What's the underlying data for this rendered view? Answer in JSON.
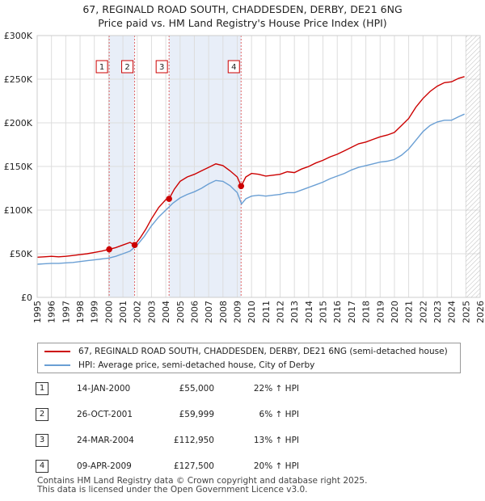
{
  "title": {
    "line1": "67, REGINALD ROAD SOUTH, CHADDESDEN, DERBY, DE21 6NG",
    "line2": "Price paid vs. HM Land Registry's House Price Index (HPI)"
  },
  "chart_data": {
    "type": "line",
    "xlim": [
      1995,
      2026
    ],
    "ylim": [
      0,
      300000
    ],
    "y_ticks": [
      0,
      50000,
      100000,
      150000,
      200000,
      250000,
      300000
    ],
    "y_tick_labels": [
      "£0",
      "£50K",
      "£100K",
      "£150K",
      "£200K",
      "£250K",
      "£300K"
    ],
    "x_ticks": [
      1995,
      1996,
      1997,
      1998,
      1999,
      2000,
      2001,
      2002,
      2003,
      2004,
      2005,
      2006,
      2007,
      2008,
      2009,
      2010,
      2011,
      2012,
      2013,
      2014,
      2015,
      2016,
      2017,
      2018,
      2019,
      2020,
      2021,
      2022,
      2023,
      2024,
      2025,
      2026
    ],
    "grid": true,
    "shaded_periods": [
      [
        2000.04,
        2001.82
      ],
      [
        2004.23,
        2009.27
      ]
    ],
    "future_hatch_from": 2025.0,
    "series": [
      {
        "name": "67, REGINALD ROAD SOUTH, CHADDESDEN, DERBY, DE21 6NG (semi-detached house)",
        "color": "#cc0000",
        "x": [
          1995.0,
          1995.5,
          1996.0,
          1996.5,
          1997.0,
          1997.5,
          1998.0,
          1998.5,
          1999.0,
          1999.5,
          2000.04,
          2000.5,
          2001.0,
          2001.5,
          2001.82,
          2002.2,
          2002.6,
          2003.0,
          2003.5,
          2004.0,
          2004.23,
          2004.6,
          2005.0,
          2005.5,
          2006.0,
          2006.5,
          2007.0,
          2007.5,
          2008.0,
          2008.5,
          2009.0,
          2009.27,
          2009.6,
          2010.0,
          2010.5,
          2011.0,
          2011.5,
          2012.0,
          2012.5,
          2013.0,
          2013.5,
          2014.0,
          2014.5,
          2015.0,
          2015.5,
          2016.0,
          2016.5,
          2017.0,
          2017.5,
          2018.0,
          2018.5,
          2019.0,
          2019.5,
          2020.0,
          2020.5,
          2021.0,
          2021.5,
          2022.0,
          2022.5,
          2023.0,
          2023.5,
          2024.0,
          2024.5,
          2024.9
        ],
        "values": [
          46000,
          46500,
          47000,
          46500,
          47000,
          48000,
          49000,
          50000,
          51500,
          53000,
          55000,
          57000,
          60000,
          63000,
          59999,
          68000,
          78000,
          90000,
          103000,
          112000,
          112950,
          124000,
          133000,
          138000,
          141000,
          145000,
          149000,
          153000,
          151000,
          145000,
          138000,
          127500,
          138000,
          142000,
          141000,
          139000,
          140000,
          141000,
          144000,
          143000,
          147000,
          150000,
          154000,
          157000,
          161000,
          164000,
          168000,
          172000,
          176000,
          178000,
          181000,
          184000,
          186000,
          189000,
          197000,
          205000,
          218000,
          228000,
          236000,
          242000,
          246000,
          247000,
          251000,
          253000
        ]
      },
      {
        "name": "HPI: Average price, semi-detached house, City of Derby",
        "color": "#6a9fd4",
        "x": [
          1995.0,
          1995.5,
          1996.0,
          1996.5,
          1997.0,
          1997.5,
          1998.0,
          1998.5,
          1999.0,
          1999.5,
          2000.0,
          2000.5,
          2001.0,
          2001.5,
          2002.0,
          2002.5,
          2003.0,
          2003.5,
          2004.0,
          2004.5,
          2005.0,
          2005.5,
          2006.0,
          2006.5,
          2007.0,
          2007.5,
          2008.0,
          2008.5,
          2009.0,
          2009.3,
          2009.6,
          2010.0,
          2010.5,
          2011.0,
          2011.5,
          2012.0,
          2012.5,
          2013.0,
          2013.5,
          2014.0,
          2014.5,
          2015.0,
          2015.5,
          2016.0,
          2016.5,
          2017.0,
          2017.5,
          2018.0,
          2018.5,
          2019.0,
          2019.5,
          2020.0,
          2020.5,
          2021.0,
          2021.5,
          2022.0,
          2022.5,
          2023.0,
          2023.5,
          2024.0,
          2024.5,
          2024.9
        ],
        "values": [
          38000,
          38500,
          39000,
          39000,
          39500,
          40000,
          41000,
          42000,
          43000,
          44000,
          45000,
          47000,
          50000,
          53000,
          60000,
          70000,
          82000,
          92000,
          100000,
          108000,
          114000,
          118000,
          121000,
          125000,
          130000,
          134000,
          133000,
          128000,
          120000,
          107000,
          113000,
          116000,
          117000,
          116000,
          117000,
          118000,
          120000,
          120000,
          123000,
          126000,
          129000,
          132000,
          136000,
          139000,
          142000,
          146000,
          149000,
          151000,
          153000,
          155000,
          156000,
          158000,
          163000,
          170000,
          180000,
          190000,
          197000,
          201000,
          203000,
          203000,
          207000,
          210000
        ]
      }
    ],
    "sale_points": [
      {
        "label": "1",
        "x": 2000.04,
        "value": 55000
      },
      {
        "label": "2",
        "x": 2001.82,
        "value": 59999
      },
      {
        "label": "3",
        "x": 2004.23,
        "value": 112950
      },
      {
        "label": "4",
        "x": 2009.27,
        "value": 127500
      }
    ]
  },
  "legend": {
    "property_label": "67, REGINALD ROAD SOUTH, CHADDESDEN, DERBY, DE21 6NG (semi-detached house)",
    "hpi_label": "HPI: Average price, semi-detached house, City of Derby"
  },
  "sales": [
    {
      "num": "1",
      "date": "14-JAN-2000",
      "price": "£55,000",
      "hpi": "22% ↑ HPI"
    },
    {
      "num": "2",
      "date": "26-OCT-2001",
      "price": "£59,999",
      "hpi": "6% ↑ HPI"
    },
    {
      "num": "3",
      "date": "24-MAR-2004",
      "price": "£112,950",
      "hpi": "13% ↑ HPI"
    },
    {
      "num": "4",
      "date": "09-APR-2009",
      "price": "£127,500",
      "hpi": "20% ↑ HPI"
    }
  ],
  "footer": {
    "line1": "Contains HM Land Registry data © Crown copyright and database right 2025.",
    "line2": "This data is licensed under the Open Government Licence v3.0."
  }
}
